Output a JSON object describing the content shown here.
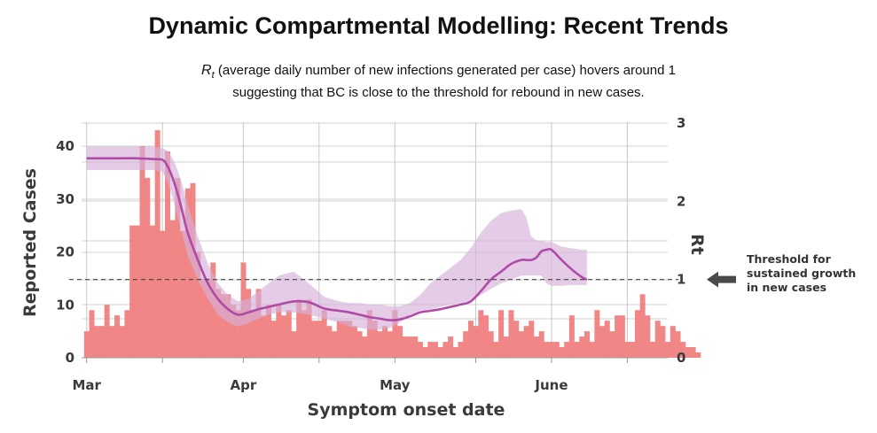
{
  "chart_data": {
    "type": "bar",
    "title": "Dynamic Compartmental Modelling: Recent Trends",
    "subtitle_symbol": "R",
    "subtitle_symbol_sub": "t",
    "subtitle_line1": "(average daily number of new infections generated per case) hovers around 1",
    "subtitle_line2": "suggesting that BC is close to the threshold for rebound in new cases.",
    "xlabel": "Symptom onset date",
    "ylabel": "Reported Cases",
    "y2label": "Rt",
    "x_ticks": [
      {
        "label": "Mar",
        "day": 0
      },
      {
        "label": "Apr",
        "day": 31
      },
      {
        "label": "May",
        "day": 61
      },
      {
        "label": "June",
        "day": 92
      }
    ],
    "x_grid_days": [
      15,
      46,
      77,
      107
    ],
    "y_ticks": [
      0,
      10,
      20,
      30,
      40
    ],
    "y2_ticks": [
      0,
      1,
      2,
      3
    ],
    "ylim": [
      0,
      45
    ],
    "y2lim": [
      0,
      3
    ],
    "xlim": [
      -1,
      115
    ],
    "bar_color": "#f08080",
    "reported_cases": [
      5,
      9,
      6,
      6,
      10,
      6,
      8,
      6,
      9,
      25,
      25,
      40,
      34,
      25,
      43,
      24,
      39,
      26,
      34,
      24,
      32,
      33,
      20,
      15,
      15,
      18,
      13,
      12,
      12,
      10,
      9,
      18,
      13,
      9,
      13,
      8,
      10,
      7,
      10,
      8,
      9,
      5,
      11,
      9,
      11,
      7,
      7,
      9,
      6,
      5,
      7,
      7,
      7,
      6,
      5,
      4,
      9,
      7,
      5,
      6,
      5,
      9,
      6,
      4,
      4,
      4,
      3,
      2,
      3,
      3,
      2,
      3,
      4,
      2,
      3,
      5,
      7,
      6,
      9,
      8,
      5,
      3,
      9,
      4,
      9,
      7,
      5,
      6,
      7,
      4,
      5,
      3,
      3,
      3,
      2,
      3,
      8,
      3,
      4,
      5,
      3,
      9,
      6,
      7,
      5,
      8,
      8,
      3,
      3,
      9,
      12,
      8,
      3,
      7,
      6,
      3,
      6,
      5,
      3,
      2,
      2,
      1
    ],
    "rt_series": {
      "name": "Rt",
      "color": "#b04aa8",
      "band_color": "#d6b0d8",
      "x": [
        0,
        5,
        10,
        13,
        15,
        16,
        17,
        18,
        19,
        20,
        22,
        24,
        26,
        28,
        30,
        32,
        34,
        36,
        38,
        41,
        44,
        47,
        50,
        52,
        54,
        56,
        58,
        60,
        62,
        64,
        66,
        68,
        70,
        72,
        74,
        76,
        78,
        80,
        82,
        84,
        86,
        87,
        88,
        89,
        90,
        91,
        92,
        94,
        96,
        98,
        99
      ],
      "y": [
        2.55,
        2.55,
        2.55,
        2.54,
        2.53,
        2.45,
        2.3,
        2.1,
        1.85,
        1.6,
        1.25,
        0.95,
        0.75,
        0.62,
        0.55,
        0.58,
        0.62,
        0.65,
        0.68,
        0.72,
        0.71,
        0.63,
        0.6,
        0.58,
        0.55,
        0.52,
        0.5,
        0.48,
        0.49,
        0.53,
        0.58,
        0.6,
        0.62,
        0.65,
        0.68,
        0.72,
        0.85,
        1.0,
        1.1,
        1.2,
        1.25,
        1.25,
        1.25,
        1.28,
        1.36,
        1.38,
        1.38,
        1.25,
        1.13,
        1.03,
        1.0
      ],
      "lower": [
        2.4,
        2.4,
        2.4,
        2.4,
        2.38,
        2.25,
        2.05,
        1.8,
        1.55,
        1.3,
        1.0,
        0.75,
        0.55,
        0.45,
        0.4,
        0.44,
        0.5,
        0.55,
        0.58,
        0.58,
        0.55,
        0.5,
        0.45,
        0.4,
        0.38,
        0.36,
        0.36,
        0.38,
        0.45,
        0.55,
        0.6,
        0.62,
        0.65,
        0.68,
        0.7,
        0.73,
        0.8,
        0.88,
        0.95,
        1.0,
        1.05,
        1.05,
        1.05,
        1.05,
        1.05,
        0.95,
        0.92,
        0.92,
        0.93,
        0.93,
        0.93
      ],
      "upper": [
        2.7,
        2.7,
        2.7,
        2.7,
        2.68,
        2.65,
        2.55,
        2.4,
        2.2,
        1.95,
        1.55,
        1.2,
        0.95,
        0.8,
        0.72,
        0.75,
        0.85,
        0.95,
        1.05,
        1.1,
        0.95,
        0.78,
        0.72,
        0.7,
        0.7,
        0.68,
        0.68,
        0.66,
        0.66,
        0.7,
        0.8,
        0.95,
        1.05,
        1.15,
        1.25,
        1.4,
        1.6,
        1.75,
        1.85,
        1.88,
        1.9,
        1.8,
        1.55,
        1.5,
        1.5,
        1.48,
        1.48,
        1.42,
        1.4,
        1.38,
        1.38
      ]
    },
    "threshold": {
      "value": 1,
      "label_lines": [
        "Threshold for",
        "sustained growth",
        "in new cases"
      ],
      "arrow_color": "#4a4a4a"
    }
  }
}
